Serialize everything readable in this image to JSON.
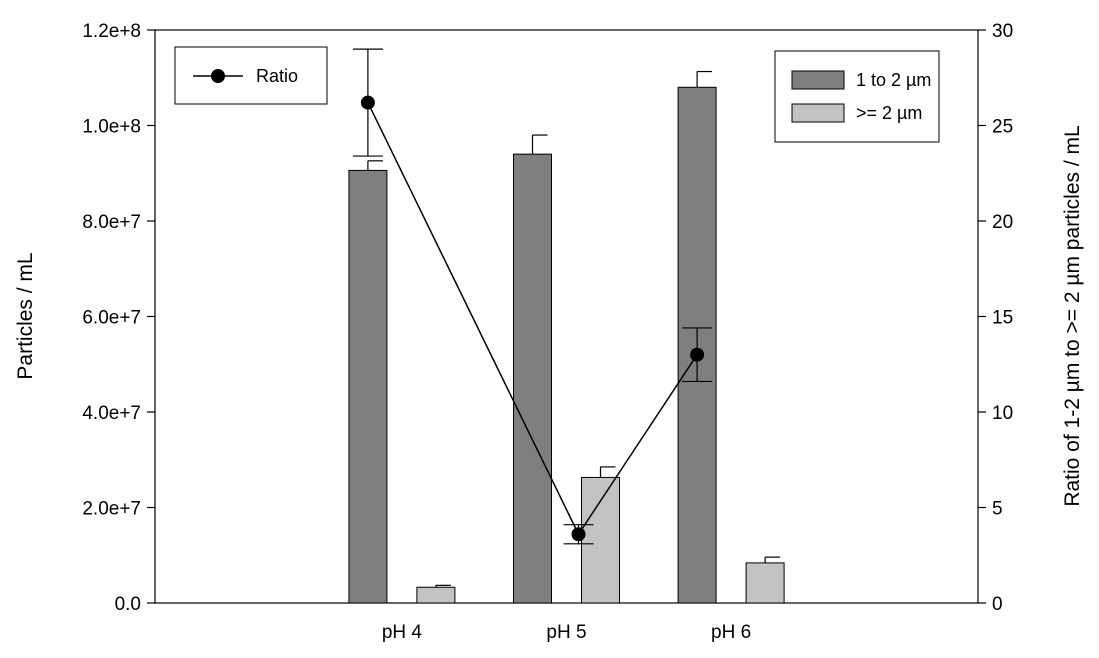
{
  "chart_data": {
    "type": "bar",
    "categories": [
      "pH 4",
      "pH 5",
      "pH 6"
    ],
    "series": [
      {
        "name": "1 to 2 µm",
        "axis": "left",
        "kind": "bar",
        "color": "#7f7f7f",
        "values": [
          90600000,
          94000000,
          108000000
        ],
        "error": [
          2000000,
          4000000,
          3300000
        ]
      },
      {
        "name": ">= 2 µm",
        "axis": "left",
        "kind": "bar",
        "color": "#c3c3c3",
        "values": [
          3300000,
          26300000,
          8400000
        ],
        "error": [
          400000,
          2200000,
          1200000
        ]
      },
      {
        "name": "Ratio",
        "axis": "right",
        "kind": "line",
        "marker": "circle",
        "color": "#000000",
        "values": [
          26.2,
          3.6,
          13.0
        ],
        "error": [
          2.8,
          0.5,
          1.4
        ]
      }
    ],
    "ylabel": "Particles / mL",
    "y2label": "Ratio of 1-2 µm to >= 2 µm particles / mL",
    "ylim": [
      0,
      120000000
    ],
    "y2lim": [
      0,
      30
    ],
    "yticks": [
      "0.0",
      "2.0e+7",
      "4.0e+7",
      "6.0e+7",
      "8.0e+7",
      "1.0e+8",
      "1.2e+8"
    ],
    "y2ticks": [
      "0",
      "5",
      "10",
      "15",
      "20",
      "25",
      "30"
    ],
    "legend_line_placement": "top-left",
    "legend_bars_placement": "top-right",
    "grid": false
  }
}
